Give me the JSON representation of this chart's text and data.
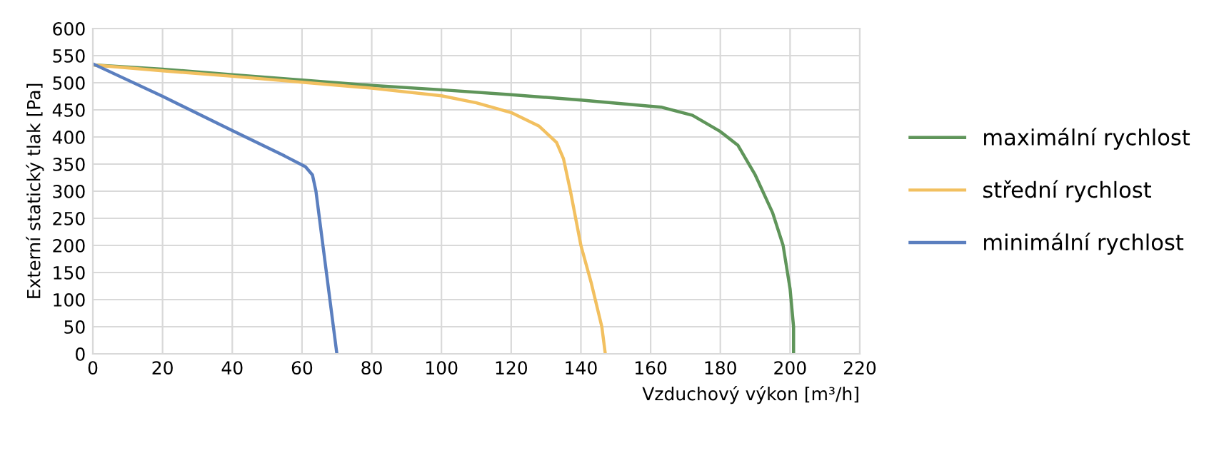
{
  "chart_data": {
    "type": "line",
    "xlabel": "Vzduchový výkon [m³/h]",
    "ylabel": "Externí statický tlak [Pa]",
    "xlim": [
      0,
      220
    ],
    "xticks": [
      0,
      20,
      40,
      60,
      80,
      100,
      120,
      140,
      160,
      180,
      200,
      220
    ],
    "ylim": [
      0,
      600
    ],
    "yticks": [
      0,
      50,
      100,
      150,
      200,
      250,
      300,
      350,
      400,
      450,
      500,
      550,
      600
    ],
    "grid": true,
    "legend": "right",
    "marker": "none",
    "line_style": "solid",
    "series": [
      {
        "name": "maximální rychlost",
        "color": "#5f955a",
        "x": [
          0,
          20,
          40,
          60,
          80,
          100,
          120,
          140,
          163,
          172,
          180,
          185,
          190,
          195,
          198,
          200,
          201,
          201
        ],
        "values": [
          533,
          525,
          515,
          505,
          495,
          487,
          478,
          468,
          455,
          440,
          410,
          385,
          330,
          260,
          200,
          120,
          50,
          0
        ]
      },
      {
        "name": "střední rychlost",
        "color": "#f2c060",
        "x": [
          0,
          20,
          40,
          60,
          80,
          100,
          110,
          120,
          128,
          133,
          135,
          137,
          140,
          143,
          146,
          147
        ],
        "values": [
          533,
          522,
          512,
          501,
          490,
          476,
          463,
          445,
          420,
          390,
          360,
          300,
          200,
          130,
          50,
          0
        ]
      },
      {
        "name": "minimální rychlost",
        "color": "#5b7fbf",
        "x": [
          0,
          20,
          40,
          55,
          61,
          63,
          64,
          65,
          66,
          67,
          68,
          69,
          70
        ],
        "values": [
          535,
          475,
          412,
          365,
          345,
          330,
          300,
          250,
          200,
          150,
          100,
          50,
          0
        ]
      }
    ]
  }
}
